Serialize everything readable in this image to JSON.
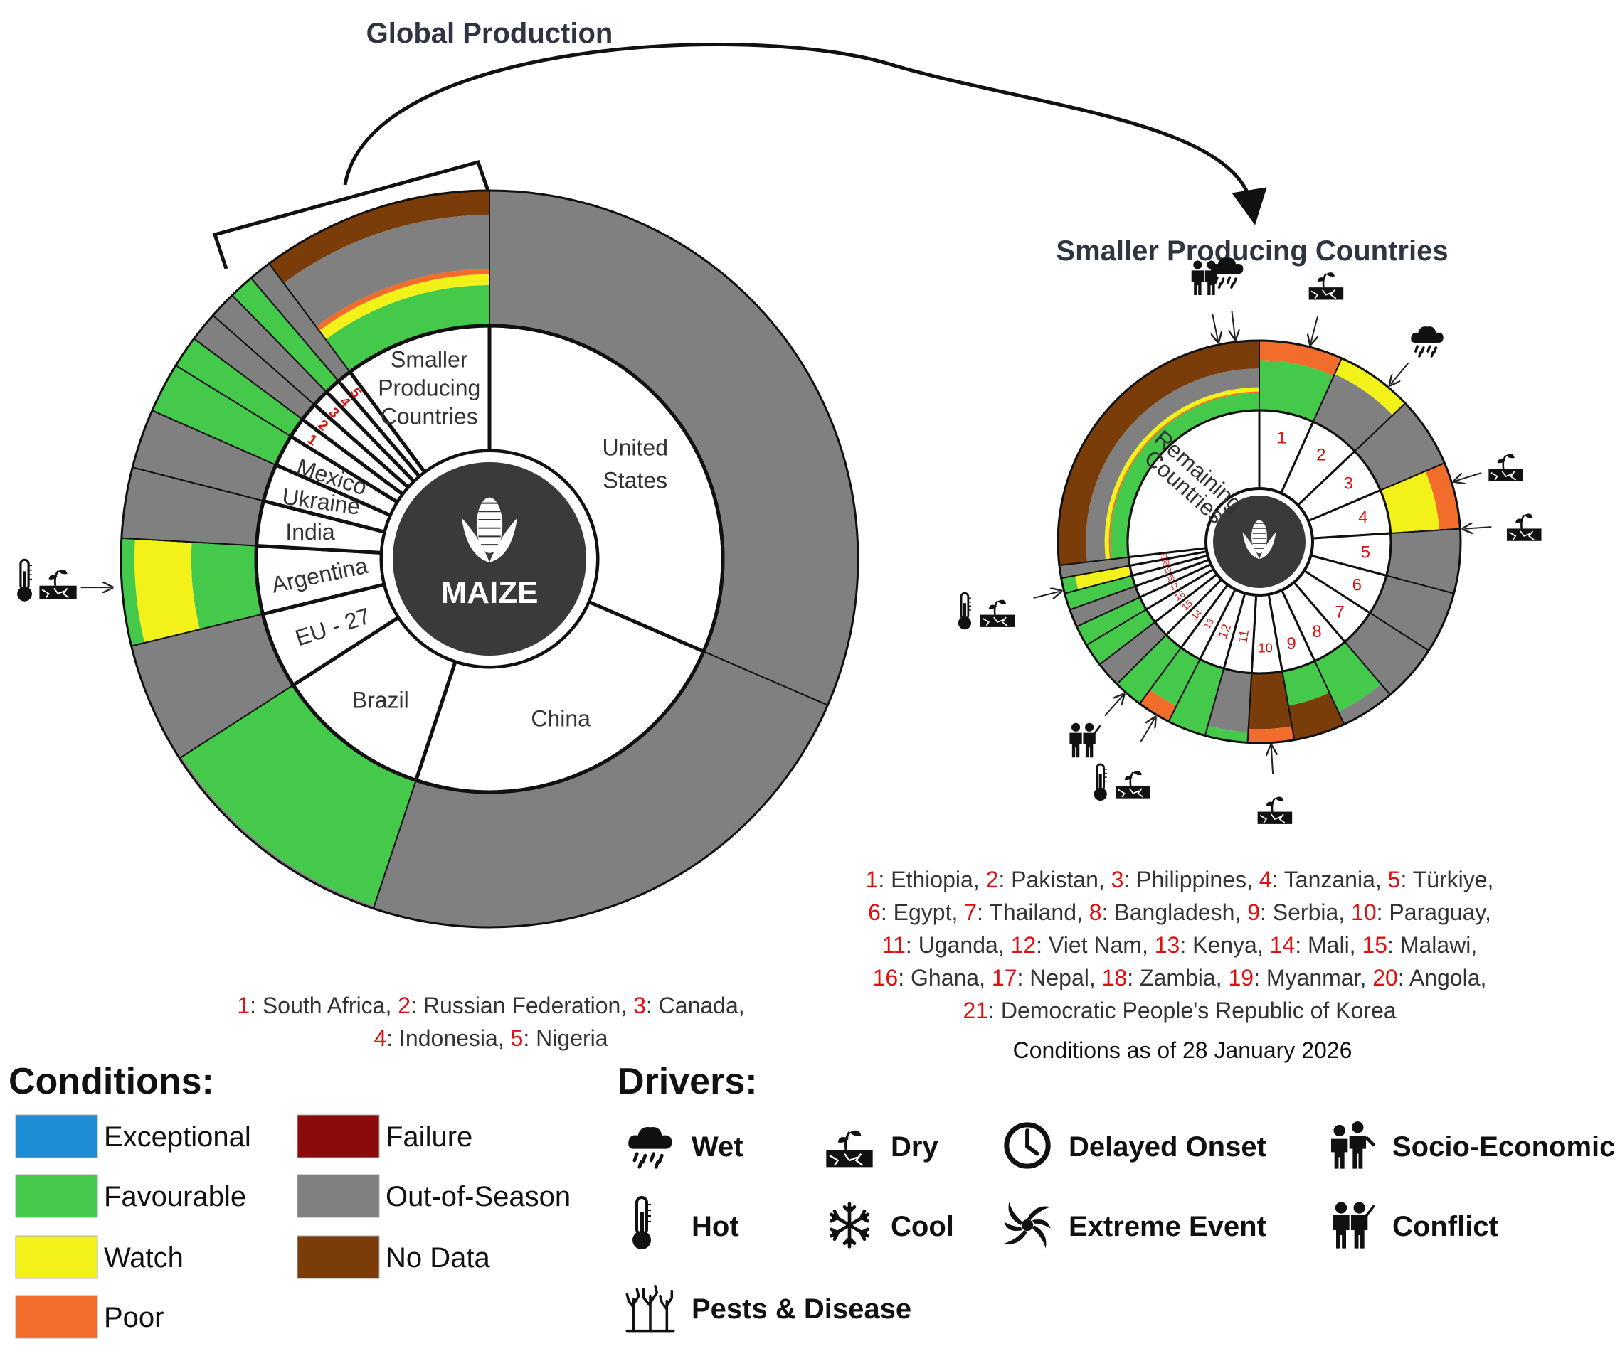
{
  "titles": {
    "global": "Global Production",
    "smaller": "Smaller Producing Countries",
    "maize": "MAIZE",
    "remaining": "Remaining Countries",
    "smaller_inner": [
      "Smaller",
      "Producing",
      "Countries"
    ],
    "conditions_date": "Conditions as of 28 January 2026"
  },
  "colors": {
    "Exceptional": "#1f8dd6",
    "Favourable": "#45c94a",
    "Watch": "#f2f21a",
    "Poor": "#f26d2b",
    "Failure": "#8b0a0a",
    "Out-of-Season": "#808080",
    "No Data": "#7a3d0a",
    "number": "#e01010"
  },
  "chart_data": [
    {
      "type": "pie",
      "name_printed": "Global Production",
      "center_label": "MAIZE",
      "slices": [
        {
          "label": "United States",
          "value": 31.5,
          "segments": [
            [
              "Out-of-Season",
              1
            ]
          ]
        },
        {
          "label": "China",
          "value": 23.6,
          "segments": [
            [
              "Out-of-Season",
              1
            ]
          ]
        },
        {
          "label": "Brazil",
          "value": 10.8,
          "segments": [
            [
              "Favourable",
              0.98
            ],
            [
              "Out-of-Season",
              0.02
            ]
          ]
        },
        {
          "label": "EU - 27",
          "value": 5.3,
          "segments": [
            [
              "Out-of-Season",
              1
            ]
          ]
        },
        {
          "label": "Argentina",
          "value": 4.7,
          "segments": [
            [
              "Favourable",
              0.48
            ],
            [
              "Watch",
              0.42
            ],
            [
              "Favourable",
              0.1
            ]
          ]
        },
        {
          "label": "India",
          "value": 3.1,
          "segments": [
            [
              "Out-of-Season",
              1
            ]
          ]
        },
        {
          "label": "Ukraine",
          "value": 2.6,
          "segments": [
            [
              "Out-of-Season",
              1
            ]
          ]
        },
        {
          "label": "Mexico",
          "value": 2.2,
          "segments": [
            [
              "Favourable",
              1
            ]
          ]
        },
        {
          "label": "1",
          "value": 1.4,
          "segments": [
            [
              "Favourable",
              1
            ]
          ]
        },
        {
          "label": "2",
          "value": 1.3,
          "segments": [
            [
              "Out-of-Season",
              1
            ]
          ]
        },
        {
          "label": "3",
          "value": 1.2,
          "segments": [
            [
              "Out-of-Season",
              1
            ]
          ]
        },
        {
          "label": "4",
          "value": 1.1,
          "segments": [
            [
              "Favourable",
              1
            ]
          ]
        },
        {
          "label": "5",
          "value": 1.0,
          "segments": [
            [
              "Out-of-Season",
              1
            ]
          ]
        },
        {
          "label": "Smaller Producing Countries",
          "value": 10.2,
          "segments": [
            [
              "Favourable",
              0.3
            ],
            [
              "Watch",
              0.08
            ],
            [
              "Poor",
              0.04
            ],
            [
              "Out-of-Season",
              0.4
            ],
            [
              "No Data",
              0.18
            ]
          ]
        }
      ],
      "driver_markers": [
        {
          "slice": "Argentina",
          "drivers": [
            "Hot",
            "Dry"
          ]
        }
      ],
      "key_prefix": [
        "1",
        "2",
        "3",
        "4",
        "5"
      ],
      "key_names": [
        "South Africa",
        "Russian Federation",
        "Canada",
        "Indonesia",
        "Nigeria"
      ]
    },
    {
      "type": "pie",
      "name_printed": "Smaller Producing Countries",
      "center_label": "Remaining Countries",
      "slices": [
        {
          "label": "1",
          "value": 6.5,
          "segments": [
            [
              "Favourable",
              0.72
            ],
            [
              "Poor",
              0.28
            ]
          ]
        },
        {
          "label": "2",
          "value": 6.0,
          "segments": [
            [
              "Out-of-Season",
              0.75
            ],
            [
              "Watch",
              0.25
            ]
          ]
        },
        {
          "label": "3",
          "value": 5.5,
          "segments": [
            [
              "Out-of-Season",
              1
            ]
          ]
        },
        {
          "label": "4",
          "value": 5.2,
          "segments": [
            [
              "Watch",
              0.7
            ],
            [
              "Poor",
              0.3
            ]
          ]
        },
        {
          "label": "5",
          "value": 5.0,
          "segments": [
            [
              "Out-of-Season",
              1
            ]
          ]
        },
        {
          "label": "6",
          "value": 4.8,
          "segments": [
            [
              "Out-of-Season",
              1
            ]
          ]
        },
        {
          "label": "7",
          "value": 4.5,
          "segments": [
            [
              "Out-of-Season",
              1
            ]
          ]
        },
        {
          "label": "8",
          "value": 4.2,
          "segments": [
            [
              "Favourable",
              0.8
            ],
            [
              "Out-of-Season",
              0.2
            ]
          ]
        },
        {
          "label": "9",
          "value": 4.0,
          "segments": [
            [
              "Favourable",
              0.5
            ],
            [
              "No Data",
              0.5
            ]
          ]
        },
        {
          "label": "10",
          "value": 3.6,
          "segments": [
            [
              "No Data",
              0.8
            ],
            [
              "Poor",
              0.2
            ]
          ]
        },
        {
          "label": "11",
          "value": 3.3,
          "segments": [
            [
              "Out-of-Season",
              0.85
            ],
            [
              "Favourable",
              0.15
            ]
          ]
        },
        {
          "label": "12",
          "value": 3.0,
          "segments": [
            [
              "Favourable",
              1
            ]
          ]
        },
        {
          "label": "13",
          "value": 2.6,
          "segments": [
            [
              "Favourable",
              0.75
            ],
            [
              "Poor",
              0.25
            ]
          ]
        },
        {
          "label": "14",
          "value": 2.3,
          "segments": [
            [
              "Favourable",
              1
            ]
          ]
        },
        {
          "label": "15",
          "value": 2.0,
          "segments": [
            [
              "Out-of-Season",
              1
            ]
          ]
        },
        {
          "label": "16",
          "value": 1.8,
          "segments": [
            [
              "Favourable",
              1
            ]
          ]
        },
        {
          "label": "17",
          "value": 1.6,
          "segments": [
            [
              "Favourable",
              1
            ]
          ]
        },
        {
          "label": "18",
          "value": 1.4,
          "segments": [
            [
              "Out-of-Season",
              1
            ]
          ]
        },
        {
          "label": "19",
          "value": 1.3,
          "segments": [
            [
              "Favourable",
              1
            ]
          ]
        },
        {
          "label": "20",
          "value": 1.2,
          "segments": [
            [
              "Watch",
              0.8
            ],
            [
              "Favourable",
              0.2
            ]
          ]
        },
        {
          "label": "21",
          "value": 1.0,
          "segments": [
            [
              "Out-of-Season",
              1
            ]
          ]
        },
        {
          "label": "Remaining Countries",
          "value": 26.0,
          "segments": [
            [
              "Favourable",
              0.25
            ],
            [
              "Poor",
              0.02
            ],
            [
              "Watch",
              0.06
            ],
            [
              "Out-of-Season",
              0.27
            ],
            [
              "No Data",
              0.4
            ]
          ]
        }
      ],
      "driver_markers": [
        {
          "slice": "1",
          "drivers": [
            "Dry"
          ]
        },
        {
          "slice": "2",
          "drivers": [
            "Wet"
          ]
        },
        {
          "slice": "4",
          "drivers": [
            "Dry"
          ]
        },
        {
          "slice": "4",
          "drivers": [
            "Dry"
          ]
        },
        {
          "slice": "10",
          "drivers": [
            "Dry"
          ]
        },
        {
          "slice": "13",
          "drivers": [
            "Hot",
            "Dry"
          ]
        },
        {
          "slice": "14",
          "drivers": [
            "Conflict"
          ]
        },
        {
          "slice": "20",
          "drivers": [
            "Hot",
            "Dry"
          ]
        },
        {
          "slice": "Remaining Countries",
          "drivers": [
            "Wet"
          ]
        },
        {
          "slice": "Remaining Countries",
          "drivers": [
            "Conflict"
          ]
        }
      ],
      "key_prefix": [
        "1",
        "2",
        "3",
        "4",
        "5",
        "6",
        "7",
        "8",
        "9",
        "10",
        "11",
        "12",
        "13",
        "14",
        "15",
        "16",
        "17",
        "18",
        "19",
        "20",
        "21"
      ],
      "key_names": [
        "Ethiopia",
        "Pakistan",
        "Philippines",
        "Tanzania",
        "Türkiye",
        "Egypt",
        "Thailand",
        "Bangladesh",
        "Serbia",
        "Paraguay",
        "Uganda",
        "Viet Nam",
        "Kenya",
        "Mali",
        "Malawi",
        "Ghana",
        "Nepal",
        "Zambia",
        "Myanmar",
        "Angola",
        "Democratic People's Republic of Korea"
      ]
    }
  ],
  "legend": {
    "conditions_title": "Conditions:",
    "conditions": [
      {
        "label": "Exceptional",
        "color": "#1f8dd6"
      },
      {
        "label": "Favourable",
        "color": "#45c94a"
      },
      {
        "label": "Watch",
        "color": "#f2f21a"
      },
      {
        "label": "Poor",
        "color": "#f26d2b"
      },
      {
        "label": "Failure",
        "color": "#8b0a0a"
      },
      {
        "label": "Out-of-Season",
        "color": "#808080"
      },
      {
        "label": "No Data",
        "color": "#7a3d0a"
      }
    ],
    "drivers_title": "Drivers:",
    "drivers": [
      {
        "label": "Wet",
        "icon": "wet-icon"
      },
      {
        "label": "Dry",
        "icon": "dry-icon"
      },
      {
        "label": "Delayed Onset",
        "icon": "delayed-onset-icon"
      },
      {
        "label": "Socio-Economic",
        "icon": "socio-economic-icon"
      },
      {
        "label": "Hot",
        "icon": "hot-icon"
      },
      {
        "label": "Cool",
        "icon": "cool-icon"
      },
      {
        "label": "Extreme Event",
        "icon": "extreme-event-icon"
      },
      {
        "label": "Conflict",
        "icon": "conflict-icon"
      },
      {
        "label": "Pests & Disease",
        "icon": "pests-disease-icon"
      }
    ]
  }
}
